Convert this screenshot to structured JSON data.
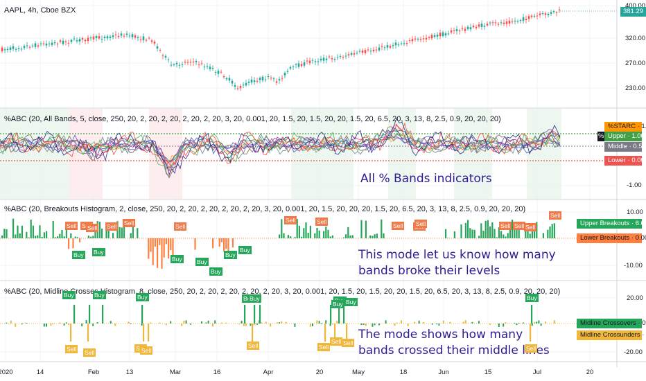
{
  "header": {
    "symbol": "AAPL, 4h, Cboe BZX"
  },
  "price_pane": {
    "y_ticks": [
      "400.00",
      "320.00",
      "270.00",
      "230.00"
    ],
    "last_price": "381.29",
    "colors": {
      "up": "#26a69a",
      "down": "#ef5350"
    }
  },
  "bands_pane": {
    "title": "%ABC (20, All Bands, 5, close, 250, 20, 2, 20, 2, 20, 2, 20, 2, 20, 3, 20, 0.001, 20, 1.5, 20, 1.5, 20, 20, 1.5, 20, 6.5, 20, 3, 13, 8, 2.5, 0.9, 20, 20, 20)",
    "annotation": "All % Bands indicators",
    "y_tick": "-1.00",
    "tags": [
      {
        "label": "%STARC",
        "value": "1.29",
        "color": "#ff9800",
        "text": "#131722"
      },
      {
        "label": "Upper",
        "value": "1.00",
        "color": "#43a047",
        "text": "#ffffff"
      },
      {
        "label": "Middle",
        "value": "0.50",
        "color": "#787b86",
        "text": "#ffffff"
      },
      {
        "label": "Lower",
        "value": "0.00",
        "color": "#ef5350",
        "text": "#ffffff"
      }
    ],
    "partial_tag": "%"
  },
  "breakouts_pane": {
    "title": "%ABC (20, Breakouts Histogram, 2, close, 250, 20, 2, 20, 2, 20, 2, 20, 2, 20, 3, 20, 0.001, 20, 1.5, 20, 20, 20, 1.5, 20, 6.5, 20, 3, 13, 8, 2.5, 0.9, 20, 20, 20)",
    "annotation_lines": [
      "This mode let us know how many",
      "bands broke their levels"
    ],
    "y_ticks": [
      "10.00",
      "-10.00"
    ],
    "tags": [
      {
        "label": "Upper Breakouts",
        "value": "6.00",
        "color": "#26a65b",
        "text": "#ffffff"
      },
      {
        "label": "Lower Breakouts",
        "value": "0.00",
        "color": "#ff7f3f",
        "text": "#131722"
      }
    ],
    "signals": {
      "sell": "Sell",
      "buy": "Buy"
    }
  },
  "midline_pane": {
    "title": "%ABC (20, Midline Crosses Histogram, 8, close, 250, 20, 2, 20, 2, 20, 2, 20, 2, 20, 3, 20, 0.001, 20, 1.5, 20, 1.5, 20, 20, 1.5, 20, 6.5, 20, 3, 13, 8, 2.5, 0.9, 20, 20, 20)",
    "annotation_lines": [
      "The mode shows how many",
      "bands crossed their middle lines"
    ],
    "y_ticks": [
      "20.00",
      "-20.00"
    ],
    "tags": [
      {
        "label": "Midline Crossovers",
        "value": "0.00",
        "color": "#26a65b",
        "text": "#131722"
      },
      {
        "label": "Midline Crossunders",
        "value": "0.00",
        "color": "#f0b73a",
        "text": "#131722"
      }
    ],
    "signals": {
      "sell": "Sell",
      "buy": "Buy"
    }
  },
  "x_axis": [
    "2020",
    "14",
    "Feb",
    "13",
    "Mar",
    "16",
    "Apr",
    "20",
    "May",
    "18",
    "Jun",
    "15",
    "Jul",
    "20"
  ]
}
